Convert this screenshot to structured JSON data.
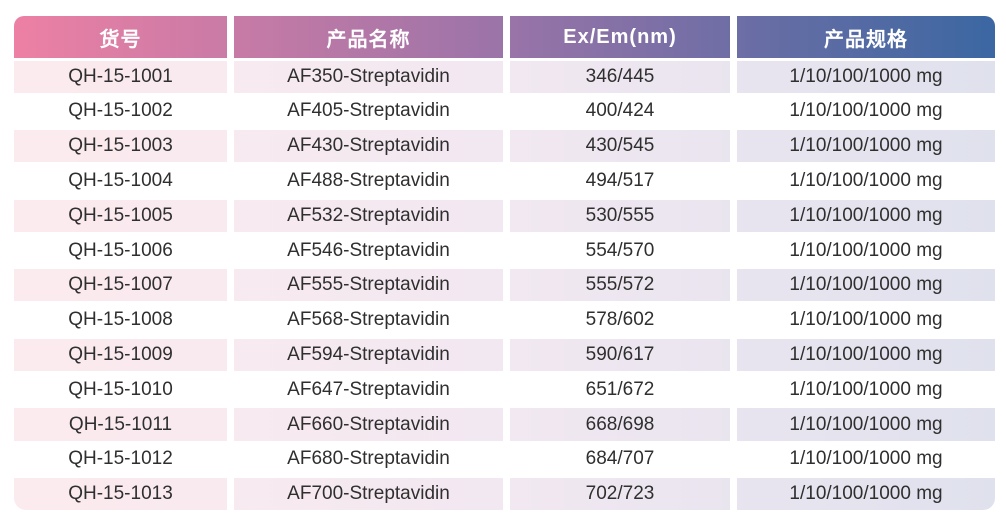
{
  "table": {
    "columns": [
      {
        "key": "sku",
        "label": "货号"
      },
      {
        "key": "name",
        "label": "产品名称"
      },
      {
        "key": "ex_em",
        "label": "Ex/Em(nm)"
      },
      {
        "key": "spec",
        "label": "产品规格"
      }
    ],
    "rows": [
      {
        "sku": "QH-15-1001",
        "name": "AF350-Streptavidin",
        "ex_em": "346/445",
        "spec": "1/10/100/1000 mg"
      },
      {
        "sku": "QH-15-1002",
        "name": "AF405-Streptavidin",
        "ex_em": "400/424",
        "spec": "1/10/100/1000 mg"
      },
      {
        "sku": "QH-15-1003",
        "name": "AF430-Streptavidin",
        "ex_em": "430/545",
        "spec": "1/10/100/1000 mg"
      },
      {
        "sku": "QH-15-1004",
        "name": "AF488-Streptavidin",
        "ex_em": "494/517",
        "spec": "1/10/100/1000 mg"
      },
      {
        "sku": "QH-15-1005",
        "name": "AF532-Streptavidin",
        "ex_em": "530/555",
        "spec": "1/10/100/1000 mg"
      },
      {
        "sku": "QH-15-1006",
        "name": "AF546-Streptavidin",
        "ex_em": "554/570",
        "spec": "1/10/100/1000 mg"
      },
      {
        "sku": "QH-15-1007",
        "name": "AF555-Streptavidin",
        "ex_em": "555/572",
        "spec": "1/10/100/1000 mg"
      },
      {
        "sku": "QH-15-1008",
        "name": "AF568-Streptavidin",
        "ex_em": "578/602",
        "spec": "1/10/100/1000 mg"
      },
      {
        "sku": "QH-15-1009",
        "name": "AF594-Streptavidin",
        "ex_em": "590/617",
        "spec": "1/10/100/1000 mg"
      },
      {
        "sku": "QH-15-1010",
        "name": "AF647-Streptavidin",
        "ex_em": "651/672",
        "spec": "1/10/100/1000 mg"
      },
      {
        "sku": "QH-15-1011",
        "name": "AF660-Streptavidin",
        "ex_em": "668/698",
        "spec": "1/10/100/1000 mg"
      },
      {
        "sku": "QH-15-1012",
        "name": "AF680-Streptavidin",
        "ex_em": "684/707",
        "spec": "1/10/100/1000 mg"
      },
      {
        "sku": "QH-15-1013",
        "name": "AF700-Streptavidin",
        "ex_em": "702/723",
        "spec": "1/10/100/1000 mg"
      }
    ]
  },
  "colors": {
    "header_gradient_left": "#ed80a4",
    "header_gradient_mid": "#9c74a8",
    "header_gradient_right": "#3b67a2",
    "row_tint_left": "#fcebee",
    "row_tint_mid": "#f2e8f1",
    "row_tint_right": "#dfe1ed",
    "row_plain": "#ffffff",
    "header_text": "#ffffff",
    "body_text": "#2f2f2f"
  }
}
